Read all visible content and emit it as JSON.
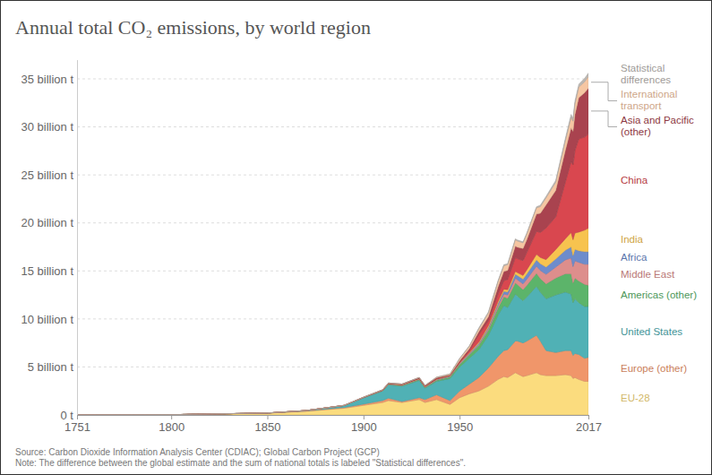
{
  "chart_data": {
    "type": "area",
    "stacked": true,
    "grid": true,
    "legend": "right",
    "title": "Annual total CO₂ emissions, by world region",
    "source": "Source: Carbon Dioxide Information Analysis Center (CDIAC); Global Carbon Project (GCP)",
    "note": "Note: The difference between the global estimate and the sum of national totals is labeled \"Statistical differences\".",
    "x": [
      1751,
      1800,
      1850,
      1870,
      1890,
      1900,
      1910,
      1913,
      1920,
      1929,
      1932,
      1938,
      1945,
      1950,
      1955,
      1960,
      1965,
      1970,
      1973,
      1975,
      1979,
      1980,
      1983,
      1985,
      1990,
      1992,
      1995,
      2000,
      2005,
      2008,
      2009,
      2010,
      2012,
      2015,
      2017
    ],
    "xlim": [
      1751,
      2017
    ],
    "xticks": [
      1751,
      1800,
      1850,
      1900,
      1950,
      2017
    ],
    "ylim": [
      0,
      37
    ],
    "yticks": [
      {
        "value": 0,
        "label": "0 t"
      },
      {
        "value": 5,
        "label": "5 billion t"
      },
      {
        "value": 10,
        "label": "10 billion t"
      },
      {
        "value": 15,
        "label": "15 billion t"
      },
      {
        "value": 20,
        "label": "20 billion t"
      },
      {
        "value": 25,
        "label": "25 billion t"
      },
      {
        "value": 30,
        "label": "30 billion t"
      },
      {
        "value": 35,
        "label": "35 billion t"
      }
    ],
    "series": [
      {
        "name": "EU-28",
        "color": "#fbdc7e",
        "values": [
          0.01,
          0.03,
          0.18,
          0.38,
          0.7,
          1.0,
          1.3,
          1.5,
          1.3,
          1.6,
          1.3,
          1.6,
          1.1,
          1.8,
          2.2,
          2.5,
          3.0,
          3.7,
          4.0,
          3.9,
          4.4,
          4.3,
          4.0,
          4.1,
          4.4,
          4.2,
          4.1,
          4.1,
          4.2,
          4.1,
          3.8,
          3.9,
          3.7,
          3.5,
          3.5
        ]
      },
      {
        "name": "Europe (other)",
        "color": "#f0966a",
        "values": [
          0,
          0,
          0.01,
          0.03,
          0.08,
          0.13,
          0.2,
          0.25,
          0.1,
          0.2,
          0.3,
          0.5,
          0.4,
          0.7,
          1.0,
          1.4,
          1.9,
          2.4,
          2.7,
          2.9,
          3.3,
          3.4,
          3.5,
          3.6,
          3.9,
          3.5,
          2.6,
          2.4,
          2.5,
          2.6,
          2.4,
          2.5,
          2.6,
          2.4,
          2.5
        ]
      },
      {
        "name": "United States",
        "color": "#50b1b5",
        "values": [
          0,
          0,
          0.01,
          0.04,
          0.2,
          0.66,
          1.0,
          1.4,
          1.6,
          1.8,
          1.2,
          1.4,
          2.3,
          2.5,
          2.7,
          2.9,
          3.4,
          4.3,
          4.7,
          4.4,
          4.9,
          4.7,
          4.4,
          4.6,
          5.1,
          5.1,
          5.4,
          6.0,
          6.1,
          5.9,
          5.5,
          5.7,
          5.4,
          5.4,
          5.3
        ]
      },
      {
        "name": "Americas (other)",
        "color": "#5cb46a",
        "values": [
          0,
          0,
          0,
          0.01,
          0.01,
          0.02,
          0.05,
          0.06,
          0.07,
          0.1,
          0.08,
          0.12,
          0.17,
          0.25,
          0.35,
          0.45,
          0.55,
          0.75,
          0.9,
          0.95,
          1.15,
          1.2,
          1.15,
          1.2,
          1.35,
          1.4,
          1.55,
          1.75,
          1.9,
          2.1,
          2.05,
          2.15,
          2.25,
          2.3,
          2.2
        ]
      },
      {
        "name": "Middle East",
        "color": "#dd8e8c",
        "values": [
          0,
          0,
          0,
          0,
          0,
          0,
          0,
          0,
          0.01,
          0.01,
          0.01,
          0.02,
          0.03,
          0.04,
          0.06,
          0.1,
          0.15,
          0.25,
          0.3,
          0.35,
          0.5,
          0.5,
          0.6,
          0.65,
          0.75,
          0.85,
          1.0,
          1.15,
          1.45,
          1.65,
          1.7,
          1.8,
          1.95,
          2.1,
          2.2
        ]
      },
      {
        "name": "Africa",
        "color": "#6d8ccc",
        "values": [
          0,
          0,
          0,
          0,
          0,
          0.01,
          0.01,
          0.02,
          0.02,
          0.03,
          0.03,
          0.04,
          0.05,
          0.07,
          0.09,
          0.12,
          0.15,
          0.22,
          0.27,
          0.3,
          0.4,
          0.43,
          0.5,
          0.55,
          0.65,
          0.7,
          0.75,
          0.85,
          1.0,
          1.15,
          1.15,
          1.2,
          1.2,
          1.3,
          1.3
        ]
      },
      {
        "name": "India",
        "color": "#f7c34f",
        "values": [
          0,
          0,
          0,
          0,
          0.01,
          0.01,
          0.02,
          0.03,
          0.04,
          0.04,
          0.04,
          0.05,
          0.05,
          0.06,
          0.07,
          0.12,
          0.16,
          0.2,
          0.23,
          0.25,
          0.3,
          0.3,
          0.38,
          0.43,
          0.58,
          0.65,
          0.78,
          0.98,
          1.2,
          1.5,
          1.65,
          1.7,
          1.95,
          2.25,
          2.45
        ]
      },
      {
        "name": "China",
        "color": "#d9474f",
        "values": [
          0,
          0,
          0,
          0,
          0,
          0,
          0.01,
          0.02,
          0.02,
          0.03,
          0.03,
          0.03,
          0.02,
          0.08,
          0.2,
          0.78,
          0.48,
          0.77,
          0.9,
          1.05,
          1.45,
          1.45,
          1.55,
          1.8,
          2.4,
          2.6,
          3.3,
          3.4,
          5.9,
          7.4,
          7.8,
          8.6,
          9.7,
          9.7,
          9.8
        ]
      },
      {
        "name": "Asia and Pacific (other)",
        "color": "#a9434f",
        "values": [
          0,
          0,
          0,
          0,
          0.01,
          0.02,
          0.04,
          0.05,
          0.06,
          0.09,
          0.08,
          0.12,
          0.05,
          0.15,
          0.22,
          0.3,
          0.45,
          0.75,
          0.95,
          0.95,
          1.2,
          1.2,
          1.25,
          1.35,
          1.8,
          2.0,
          2.4,
          2.75,
          3.3,
          3.5,
          3.5,
          3.75,
          4.3,
          4.6,
          4.8
        ]
      },
      {
        "name": "International transport",
        "color": "#f6c6a2",
        "values": [
          0,
          0,
          0,
          0,
          0,
          0,
          0,
          0,
          0,
          0,
          0,
          0.05,
          0.1,
          0.2,
          0.25,
          0.3,
          0.4,
          0.55,
          0.6,
          0.6,
          0.65,
          0.65,
          0.6,
          0.6,
          0.65,
          0.7,
          0.75,
          0.85,
          1.0,
          1.1,
          1.05,
          1.1,
          1.1,
          1.15,
          1.2
        ]
      },
      {
        "name": "Statistical differences",
        "color": "#bdb8b4",
        "values": [
          0,
          0,
          0,
          0,
          0,
          0,
          0,
          0,
          0,
          0,
          0,
          0,
          0,
          0.05,
          0.05,
          0.1,
          0.1,
          0.1,
          0.1,
          0.1,
          0.1,
          0.1,
          0.1,
          0.1,
          0.1,
          0.15,
          0.15,
          0.2,
          0.25,
          0.3,
          0.3,
          0.3,
          0.3,
          0.35,
          0.35
        ]
      }
    ]
  }
}
